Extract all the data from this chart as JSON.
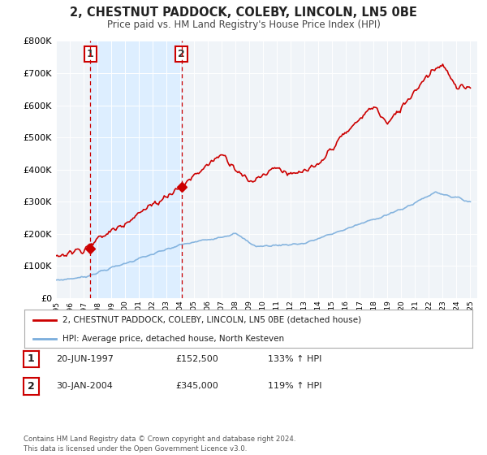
{
  "title": "2, CHESTNUT PADDOCK, COLEBY, LINCOLN, LN5 0BE",
  "subtitle": "Price paid vs. HM Land Registry's House Price Index (HPI)",
  "ylim": [
    0,
    800000
  ],
  "yticks": [
    0,
    100000,
    200000,
    300000,
    400000,
    500000,
    600000,
    700000,
    800000
  ],
  "hpi_color": "#7aaddc",
  "price_color": "#cc0000",
  "sale1_date": 1997.47,
  "sale1_price": 152500,
  "sale2_date": 2004.08,
  "sale2_price": 345000,
  "shade_color": "#ddeeff",
  "dashed_color": "#cc0000",
  "legend_label_price": "2, CHESTNUT PADDOCK, COLEBY, LINCOLN, LN5 0BE (detached house)",
  "legend_label_hpi": "HPI: Average price, detached house, North Kesteven",
  "table_row1": [
    "1",
    "20-JUN-1997",
    "£152,500",
    "133% ↑ HPI"
  ],
  "table_row2": [
    "2",
    "30-JAN-2004",
    "£345,000",
    "119% ↑ HPI"
  ],
  "footer": "Contains HM Land Registry data © Crown copyright and database right 2024.\nThis data is licensed under the Open Government Licence v3.0.",
  "bg_color": "#ffffff",
  "plot_bg": "#f0f4f8"
}
